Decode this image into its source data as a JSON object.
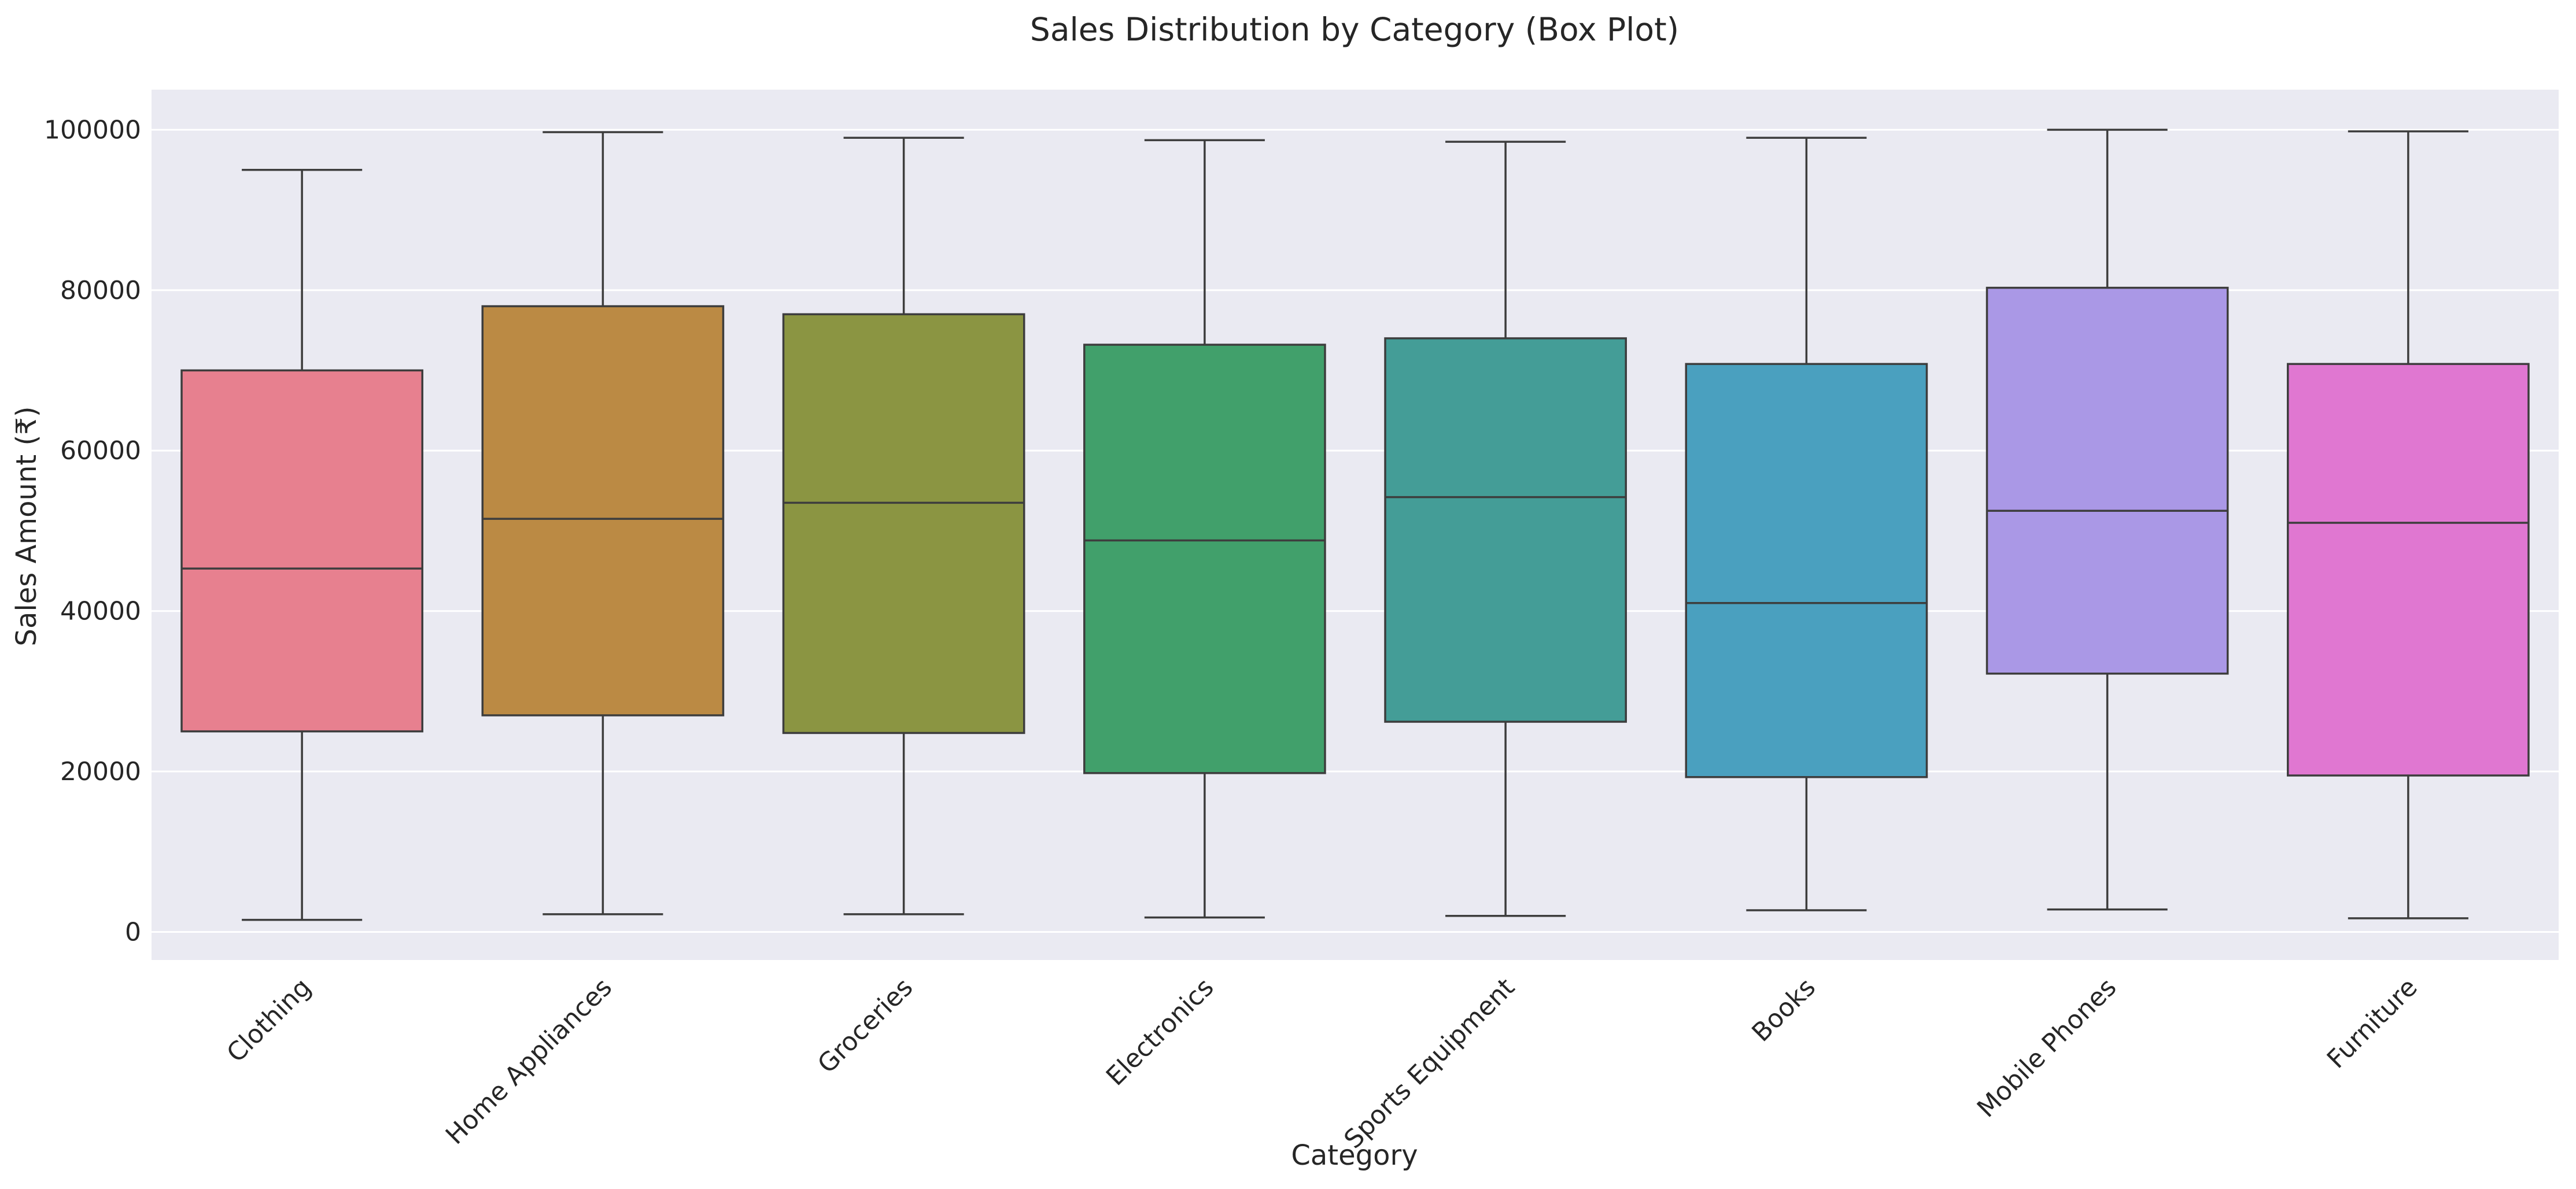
{
  "chart_data": {
    "type": "box",
    "title": "Sales Distribution by Category (Box Plot)",
    "xlabel": "Category",
    "ylabel": "Sales Amount (₹)",
    "ylim": [
      -3500,
      105000
    ],
    "yticks": [
      0,
      20000,
      40000,
      60000,
      80000,
      100000
    ],
    "grid": true,
    "legend": "none",
    "categories": [
      "Clothing",
      "Home Appliances",
      "Groceries",
      "Electronics",
      "Sports Equipment",
      "Books",
      "Mobile Phones",
      "Furniture"
    ],
    "boxes": [
      {
        "category": "Clothing",
        "min": 1500,
        "q1": 25000,
        "median": 45300,
        "q3": 70000,
        "max": 95000,
        "color": "#e7808f"
      },
      {
        "category": "Home Appliances",
        "min": 2200,
        "q1": 27000,
        "median": 51500,
        "q3": 78000,
        "max": 99700,
        "color": "#bb8a44"
      },
      {
        "category": "Groceries",
        "min": 2200,
        "q1": 24800,
        "median": 53500,
        "q3": 77000,
        "max": 99000,
        "color": "#8b9542"
      },
      {
        "category": "Electronics",
        "min": 1800,
        "q1": 19800,
        "median": 48800,
        "q3": 73200,
        "max": 98700,
        "color": "#41a06b"
      },
      {
        "category": "Sports Equipment",
        "min": 2000,
        "q1": 26200,
        "median": 54200,
        "q3": 74000,
        "max": 98500,
        "color": "#449d97"
      },
      {
        "category": "Books",
        "min": 2700,
        "q1": 19300,
        "median": 41000,
        "q3": 70800,
        "max": 99000,
        "color": "#4aa0bf"
      },
      {
        "category": "Mobile Phones",
        "min": 2800,
        "q1": 32200,
        "median": 52500,
        "q3": 80300,
        "max": 100000,
        "color": "#aa98e6"
      },
      {
        "category": "Furniture",
        "min": 1700,
        "q1": 19500,
        "median": 51000,
        "q3": 70800,
        "max": 99800,
        "color": "#e077d1"
      }
    ],
    "colors": {
      "plot_background": "#eaeaf2",
      "grid": "#ffffff",
      "line": "#3d3d3d",
      "text": "#262626"
    }
  }
}
